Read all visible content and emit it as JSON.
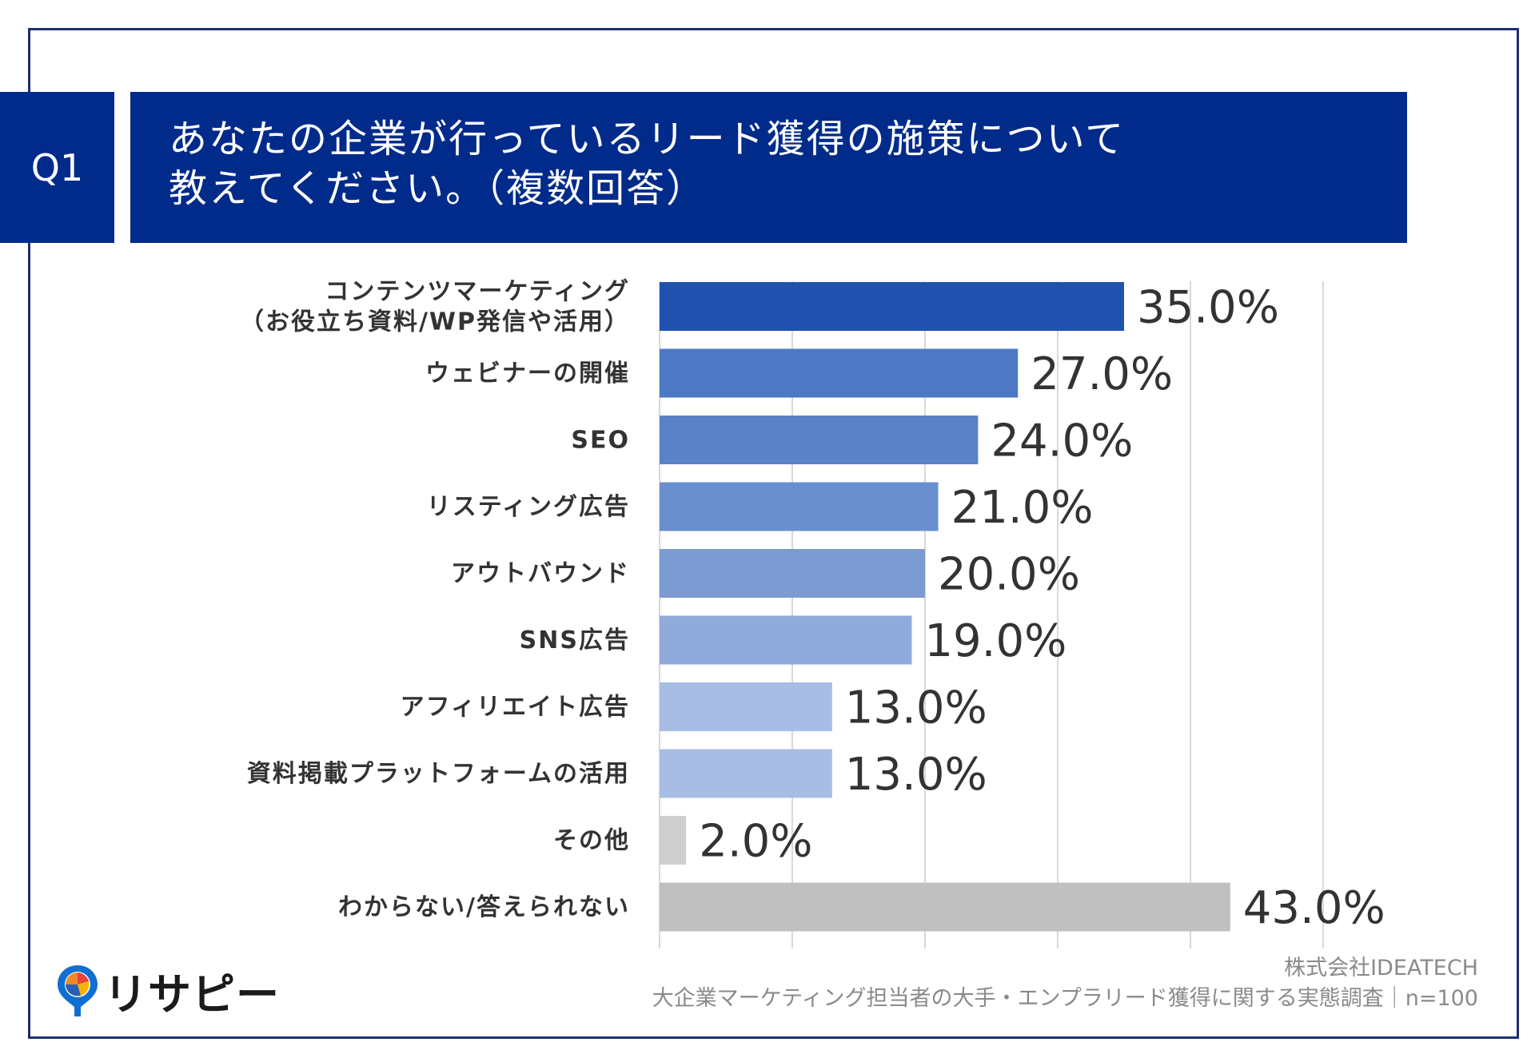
{
  "question": {
    "number": "Q1",
    "title_line1": "あなたの企業が行っているリード獲得の施策について",
    "title_line2": "教えてください。（複数回答）"
  },
  "chart_data": {
    "type": "bar",
    "orientation": "horizontal",
    "categories": [
      [
        "コンテンツマーケティング",
        "（お役立ち資料/WP発信や活用）"
      ],
      [
        "ウェビナーの開催"
      ],
      [
        "SEO"
      ],
      [
        "リスティング広告"
      ],
      [
        "アウトバウンド"
      ],
      [
        "SNS広告"
      ],
      [
        "アフィリエイト広告"
      ],
      [
        "資料掲載プラットフォームの活用"
      ],
      [
        "その他"
      ],
      [
        "わからない/答えられない"
      ]
    ],
    "values": [
      35.0,
      27.0,
      24.0,
      21.0,
      20.0,
      19.0,
      13.0,
      13.0,
      2.0,
      43.0
    ],
    "value_labels": [
      "35.0%",
      "27.0%",
      "24.0%",
      "21.0%",
      "20.0%",
      "19.0%",
      "13.0%",
      "13.0%",
      "2.0%",
      "43.0%"
    ],
    "bar_colors": [
      "#2152b0",
      "#4d78c4",
      "#5a82c8",
      "#6a8fce",
      "#7b9bd2",
      "#90abdb",
      "#a8bde3",
      "#a8bde3",
      "#cfcfcf",
      "#c0c0c0"
    ],
    "xlim": [
      0,
      50
    ],
    "gridlines": [
      0,
      10,
      20,
      30,
      40,
      50
    ],
    "grid": true,
    "xlabel": "",
    "ylabel": ""
  },
  "logo": {
    "name": "リサピー"
  },
  "source": {
    "company": "株式会社IDEATECH",
    "survey": "大企業マーケティング担当者の大手・エンプラリード獲得に関する実態調査｜n=100"
  },
  "colors": {
    "header_bg": "#002b8a",
    "frame": "#1f2f6e",
    "gridline": "#d9d9d9",
    "value_text": "#333333",
    "category_text": "#333333"
  }
}
